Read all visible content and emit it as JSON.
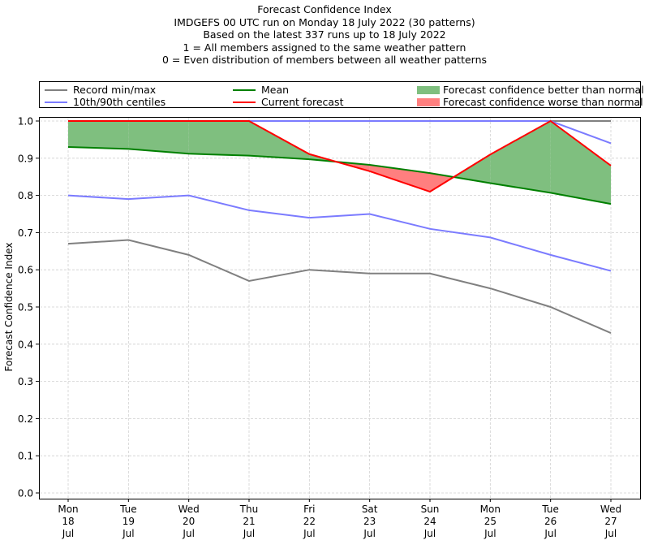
{
  "chart_data": {
    "type": "line",
    "title": "Forecast Confidence Index",
    "subtitle_lines": [
      "IMDGEFS 00 UTC run on Monday 18 July 2022 (30 patterns)",
      "Based on the latest 337 runs up to 18 July 2022",
      "1 = All members assigned to the same weather pattern",
      "0 = Even distribution of members between all weather patterns"
    ],
    "xlabel": "",
    "ylabel": "Forecast Confidence Index",
    "ylim": [
      0.0,
      1.0
    ],
    "yticks": [
      "0.0",
      "0.1",
      "0.2",
      "0.3",
      "0.4",
      "0.5",
      "0.6",
      "0.7",
      "0.8",
      "0.9",
      "1.0"
    ],
    "categories": [
      [
        "Mon",
        "18",
        "Jul"
      ],
      [
        "Tue",
        "19",
        "Jul"
      ],
      [
        "Wed",
        "20",
        "Jul"
      ],
      [
        "Thu",
        "21",
        "Jul"
      ],
      [
        "Fri",
        "22",
        "Jul"
      ],
      [
        "Sat",
        "23",
        "Jul"
      ],
      [
        "Sun",
        "24",
        "Jul"
      ],
      [
        "Mon",
        "25",
        "Jul"
      ],
      [
        "Tue",
        "26",
        "Jul"
      ],
      [
        "Wed",
        "27",
        "Jul"
      ]
    ],
    "grid": true,
    "legend_position": "top",
    "series": [
      {
        "key": "record_max",
        "name": "Record min/max",
        "color": "#808080",
        "values": [
          1.0,
          1.0,
          1.0,
          1.0,
          1.0,
          1.0,
          1.0,
          1.0,
          1.0,
          1.0
        ]
      },
      {
        "key": "record_min",
        "name": "Record min/max",
        "color": "#808080",
        "values": [
          0.67,
          0.68,
          0.64,
          0.57,
          0.6,
          0.59,
          0.59,
          0.55,
          0.5,
          0.43
        ]
      },
      {
        "key": "p90",
        "name": "10th/90th centiles",
        "color": "#7b7bff",
        "values": [
          1.0,
          1.0,
          1.0,
          1.0,
          1.0,
          1.0,
          1.0,
          1.0,
          1.0,
          0.94
        ]
      },
      {
        "key": "p10",
        "name": "10th/90th centiles",
        "color": "#7b7bff",
        "values": [
          0.8,
          0.79,
          0.8,
          0.76,
          0.74,
          0.75,
          0.71,
          0.687,
          0.64,
          0.597
        ]
      },
      {
        "key": "mean",
        "name": "Mean",
        "color": "#008000",
        "values": [
          0.93,
          0.925,
          0.912,
          0.907,
          0.897,
          0.882,
          0.86,
          0.833,
          0.807,
          0.777
        ]
      },
      {
        "key": "current",
        "name": "Current forecast",
        "color": "#ff0000",
        "values": [
          1.0,
          1.0,
          1.0,
          1.0,
          0.911,
          0.865,
          0.81,
          0.91,
          1.0,
          0.88
        ]
      }
    ],
    "fills": [
      {
        "name": "Forecast confidence better than normal",
        "color": "#7fbf7f",
        "where": "current > mean"
      },
      {
        "name": "Forecast confidence worse than normal",
        "color": "#ff7f7f",
        "where": "current < mean"
      }
    ]
  },
  "legend": {
    "items": [
      {
        "label": "Record min/max",
        "type": "line",
        "color": "#808080"
      },
      {
        "label": "10th/90th centiles",
        "type": "line",
        "color": "#7b7bff"
      },
      {
        "label": "Mean",
        "type": "line",
        "color": "#008000"
      },
      {
        "label": "Current forecast",
        "type": "line",
        "color": "#ff0000"
      },
      {
        "label": "Forecast confidence better than normal",
        "type": "patch",
        "color": "#7fbf7f"
      },
      {
        "label": "Forecast confidence worse than normal",
        "type": "patch",
        "color": "#ff7f7f"
      }
    ]
  }
}
